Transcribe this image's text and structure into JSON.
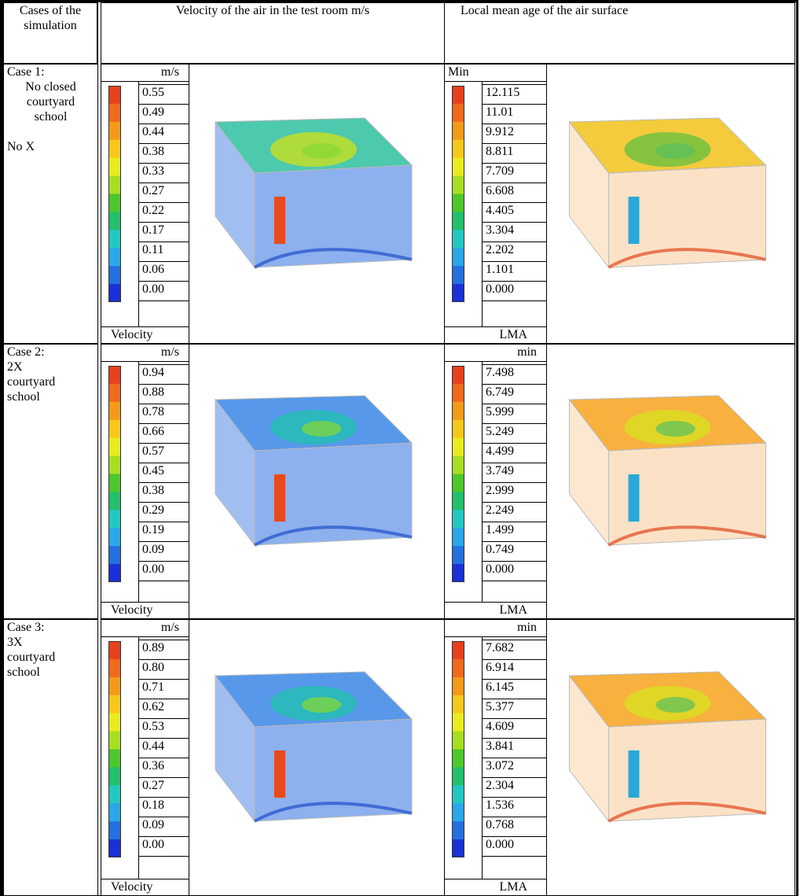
{
  "header": {
    "cases": "Cases of the simulation",
    "velocity": "Velocity of the air in the test room m/s",
    "lma": "Local mean  age of the air surface"
  },
  "cases": [
    {
      "label": [
        "Case 1:",
        "No closed",
        "courtyard",
        "school"
      ],
      "note": "No X",
      "velocity": {
        "unit": "m/s",
        "values": [
          "0.55",
          "0.49",
          "0.44",
          "0.38",
          "0.33",
          "0.27",
          "0.22",
          "0.17",
          "0.11",
          "0.06",
          "0.00"
        ],
        "footer": "Velocity"
      },
      "lma": {
        "unit": "Min",
        "values": [
          "12.115",
          "11.01",
          "9.912",
          "8.811",
          "7.709",
          "6.608",
          "4.405",
          "3.304",
          "2.202",
          "1.101",
          "0.000"
        ],
        "footer": "LMA"
      }
    },
    {
      "label": [
        "Case 2:",
        "2X",
        "courtyard",
        "school"
      ],
      "velocity": {
        "unit": "m/s",
        "values": [
          "0.94",
          "0.88",
          "0.78",
          "0.66",
          "0.57",
          "0.45",
          "0.38",
          "0.29",
          "0.19",
          "0.09",
          "0.00"
        ],
        "footer": "Velocity"
      },
      "lma": {
        "unit": "min",
        "values": [
          "7.498",
          "6.749",
          "5.999",
          "5.249",
          "4.499",
          "3.749",
          "2.999",
          "2.249",
          "1.499",
          "0.749",
          "0.000"
        ],
        "footer": "LMA"
      }
    },
    {
      "label": [
        "Case 3:",
        "3X",
        "courtyard",
        "school"
      ],
      "velocity": {
        "unit": "m/s",
        "values": [
          "0.89",
          "0.80",
          "0.71",
          "0.62",
          "0.53",
          "0.44",
          "0.36",
          "0.27",
          "0.18",
          "0.09",
          "0.00"
        ],
        "footer": "Velocity"
      },
      "lma": {
        "unit": "min",
        "values": [
          "7.682",
          "6.914",
          "6.145",
          "5.377",
          "4.609",
          "3.841",
          "3.072",
          "2.304",
          "1.536",
          "0.768",
          "0.000"
        ],
        "footer": "LMA"
      }
    }
  ]
}
